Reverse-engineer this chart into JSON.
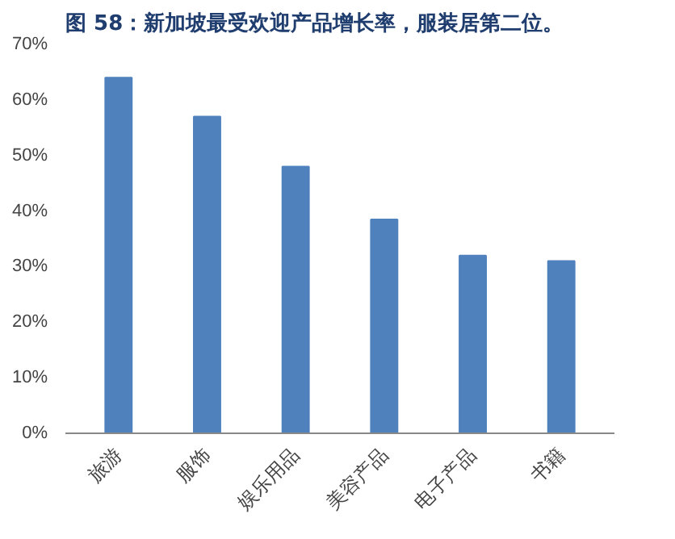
{
  "chart_data": {
    "type": "bar",
    "title": "图 58：新加坡最受欢迎产品增长率，服装居第二位。",
    "categories": [
      "旅游",
      "服饰",
      "娱乐用品",
      "美容产品",
      "电子产品",
      "书籍"
    ],
    "values": [
      64,
      57,
      48,
      38.5,
      32,
      31
    ],
    "color": "#4f81bd",
    "ylim": [
      0,
      70
    ],
    "yticks": [
      {
        "value": 0,
        "label": "0%"
      },
      {
        "value": 10,
        "label": "10%"
      },
      {
        "value": 20,
        "label": "20%"
      },
      {
        "value": 30,
        "label": "30%"
      },
      {
        "value": 40,
        "label": "40%"
      },
      {
        "value": 50,
        "label": "50%"
      },
      {
        "value": 60,
        "label": "60%"
      },
      {
        "value": 70,
        "label": "70%"
      }
    ],
    "grid": false
  }
}
